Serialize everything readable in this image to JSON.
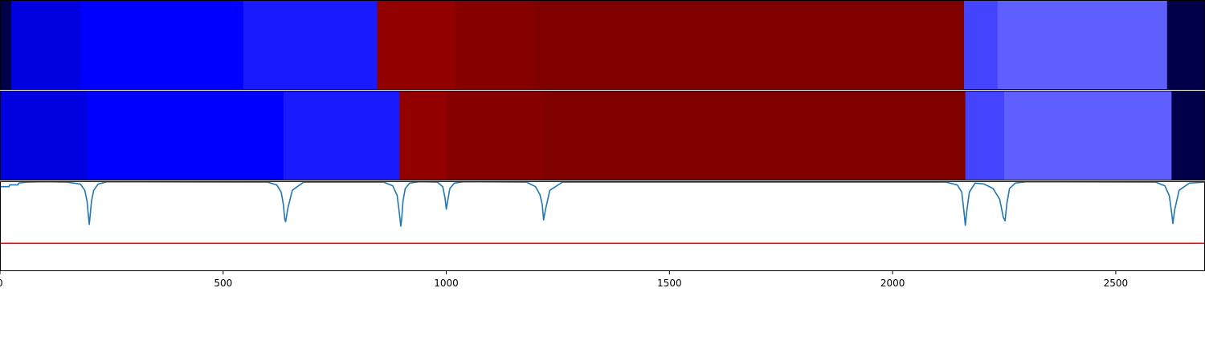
{
  "chart_data": [
    {
      "type": "heatmap",
      "xlim": [
        0,
        2700
      ],
      "segments": [
        {
          "start": 0,
          "end": 25,
          "color": "#00004a"
        },
        {
          "start": 25,
          "end": 180,
          "color": "#0000e0"
        },
        {
          "start": 180,
          "end": 545,
          "color": "#0000ff"
        },
        {
          "start": 545,
          "end": 845,
          "color": "#1a1aff"
        },
        {
          "start": 845,
          "end": 1020,
          "color": "#930000"
        },
        {
          "start": 1020,
          "end": 1195,
          "color": "#870000"
        },
        {
          "start": 1195,
          "end": 2160,
          "color": "#800000"
        },
        {
          "start": 2160,
          "end": 2235,
          "color": "#4444ff"
        },
        {
          "start": 2235,
          "end": 2615,
          "color": "#5f5fff"
        },
        {
          "start": 2615,
          "end": 2700,
          "color": "#00004a"
        }
      ]
    },
    {
      "type": "heatmap",
      "xlim": [
        0,
        2700
      ],
      "segments": [
        {
          "start": 0,
          "end": 195,
          "color": "#0000e0"
        },
        {
          "start": 195,
          "end": 635,
          "color": "#0000ff"
        },
        {
          "start": 635,
          "end": 895,
          "color": "#1a1aff"
        },
        {
          "start": 895,
          "end": 1000,
          "color": "#930000"
        },
        {
          "start": 1000,
          "end": 1215,
          "color": "#870000"
        },
        {
          "start": 1215,
          "end": 2163,
          "color": "#800000"
        },
        {
          "start": 2163,
          "end": 2250,
          "color": "#4444ff"
        },
        {
          "start": 2250,
          "end": 2625,
          "color": "#5f5fff"
        },
        {
          "start": 2625,
          "end": 2700,
          "color": "#00004a"
        }
      ]
    },
    {
      "type": "line",
      "xlim": [
        0,
        2700
      ],
      "ylim": [
        0,
        1
      ],
      "xticks": [
        0,
        500,
        1000,
        1500,
        2000,
        2500
      ],
      "tick_labels": [
        "0",
        "500",
        "1000",
        "1500",
        "2000",
        "2500"
      ],
      "series": [
        {
          "color": "#1f77b4",
          "x": [
            0,
            20,
            22,
            40,
            42,
            60,
            100,
            150,
            180,
            190,
            195,
            198,
            200,
            202,
            205,
            210,
            220,
            240,
            600,
            620,
            630,
            635,
            638,
            640,
            645,
            655,
            680,
            860,
            880,
            890,
            895,
            898,
            900,
            903,
            908,
            918,
            940,
            980,
            992,
            997,
            1000,
            1003,
            1008,
            1018,
            1040,
            1180,
            1200,
            1210,
            1215,
            1218,
            1222,
            1232,
            1260,
            2120,
            2145,
            2155,
            2160,
            2163,
            2166,
            2172,
            2185,
            2205,
            2225,
            2240,
            2248,
            2252,
            2256,
            2262,
            2275,
            2300,
            2590,
            2610,
            2620,
            2625,
            2628,
            2632,
            2642,
            2665,
            2700
          ],
          "values": [
            0.94,
            0.94,
            0.96,
            0.96,
            0.98,
            0.99,
            0.995,
            0.99,
            0.97,
            0.9,
            0.78,
            0.62,
            0.52,
            0.62,
            0.78,
            0.9,
            0.97,
            0.995,
            0.99,
            0.96,
            0.88,
            0.74,
            0.58,
            0.55,
            0.7,
            0.9,
            0.99,
            0.99,
            0.95,
            0.84,
            0.64,
            0.5,
            0.58,
            0.78,
            0.92,
            0.98,
            0.995,
            0.99,
            0.94,
            0.82,
            0.69,
            0.78,
            0.92,
            0.98,
            0.995,
            0.99,
            0.94,
            0.85,
            0.74,
            0.57,
            0.68,
            0.9,
            0.99,
            0.99,
            0.96,
            0.88,
            0.66,
            0.51,
            0.66,
            0.88,
            0.98,
            0.97,
            0.92,
            0.8,
            0.6,
            0.56,
            0.75,
            0.92,
            0.98,
            0.995,
            0.99,
            0.95,
            0.84,
            0.66,
            0.53,
            0.68,
            0.9,
            0.98,
            0.99
          ]
        },
        {
          "color": "#ff0000",
          "x": [
            0,
            2700
          ],
          "values": [
            0.31,
            0.31
          ]
        }
      ]
    }
  ]
}
